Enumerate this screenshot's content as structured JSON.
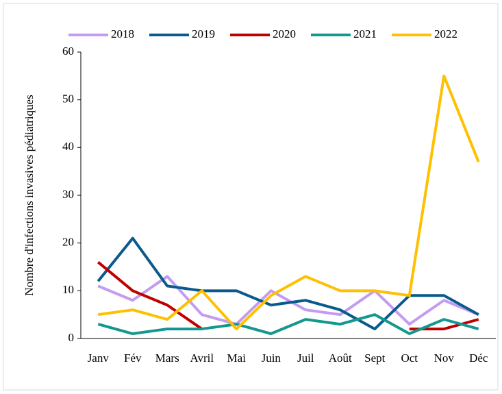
{
  "chart_data": {
    "type": "line",
    "y_label": "Nombre d'infections invasives pédiatriques",
    "categories": [
      "Janv",
      "Fév",
      "Mars",
      "Avril",
      "Mai",
      "Juin",
      "Juil",
      "Août",
      "Sept",
      "Oct",
      "Nov",
      "Déc"
    ],
    "series": [
      {
        "name": "2018",
        "color": "#c39bf0",
        "values": [
          11,
          8,
          13,
          5,
          3,
          10,
          6,
          5,
          10,
          3,
          8,
          5
        ]
      },
      {
        "name": "2019",
        "color": "#0a5a8c",
        "values": [
          12,
          21,
          11,
          10,
          10,
          7,
          8,
          6,
          2,
          9,
          9,
          5
        ]
      },
      {
        "name": "2020",
        "color": "#c00000",
        "values": [
          16,
          10,
          7,
          2,
          null,
          null,
          null,
          null,
          null,
          2,
          2,
          4
        ]
      },
      {
        "name": "2021",
        "color": "#13978f",
        "values": [
          3,
          1,
          2,
          2,
          3,
          1,
          4,
          3,
          5,
          1,
          4,
          2
        ]
      },
      {
        "name": "2022",
        "color": "#ffc000",
        "values": [
          5,
          6,
          4,
          10,
          2,
          9,
          13,
          10,
          10,
          9,
          55,
          37
        ]
      }
    ],
    "ylim": [
      0,
      60
    ],
    "yticks": [
      0,
      10,
      20,
      30,
      40,
      50,
      60
    ],
    "legend": "top"
  }
}
